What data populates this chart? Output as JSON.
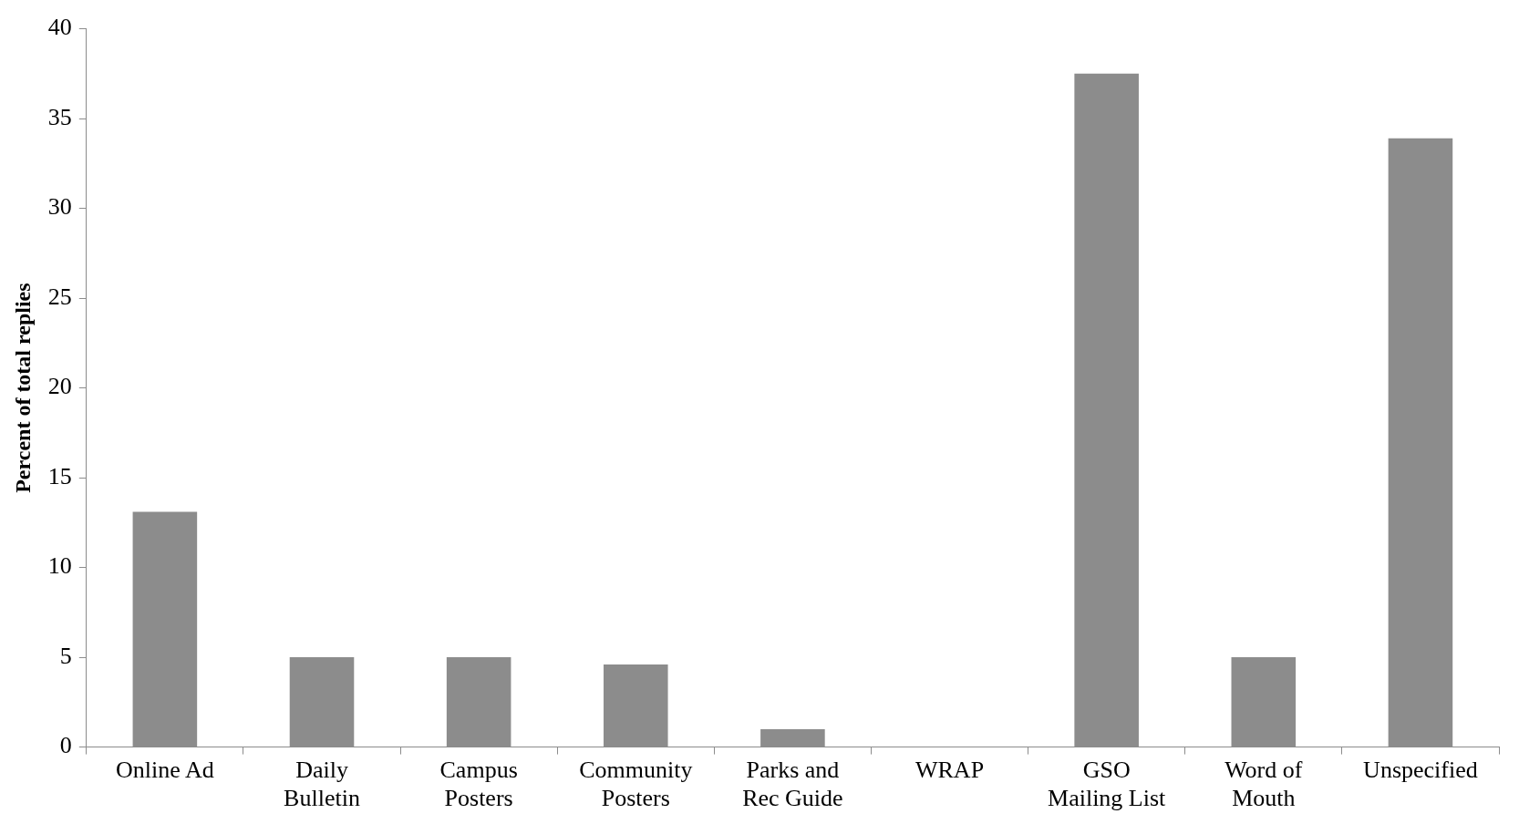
{
  "chart_data": {
    "type": "bar",
    "ylabel": "Percent of total replies",
    "categories": [
      "Online Ad",
      "Daily\nBulletin",
      "Campus\nPosters",
      "Community\nPosters",
      "Parks and\nRec Guide",
      "WRAP",
      "GSO\nMailing List",
      "Word of\nMouth",
      "Unspecified"
    ],
    "values": [
      13.1,
      5.0,
      5.0,
      4.6,
      1.0,
      0,
      37.5,
      5.0,
      33.9
    ],
    "color": "#8c8c8c",
    "ylim": [
      0,
      40
    ],
    "yticks": [
      0,
      5,
      10,
      15,
      20,
      25,
      30,
      35,
      40
    ],
    "grid": false,
    "legend": false
  }
}
